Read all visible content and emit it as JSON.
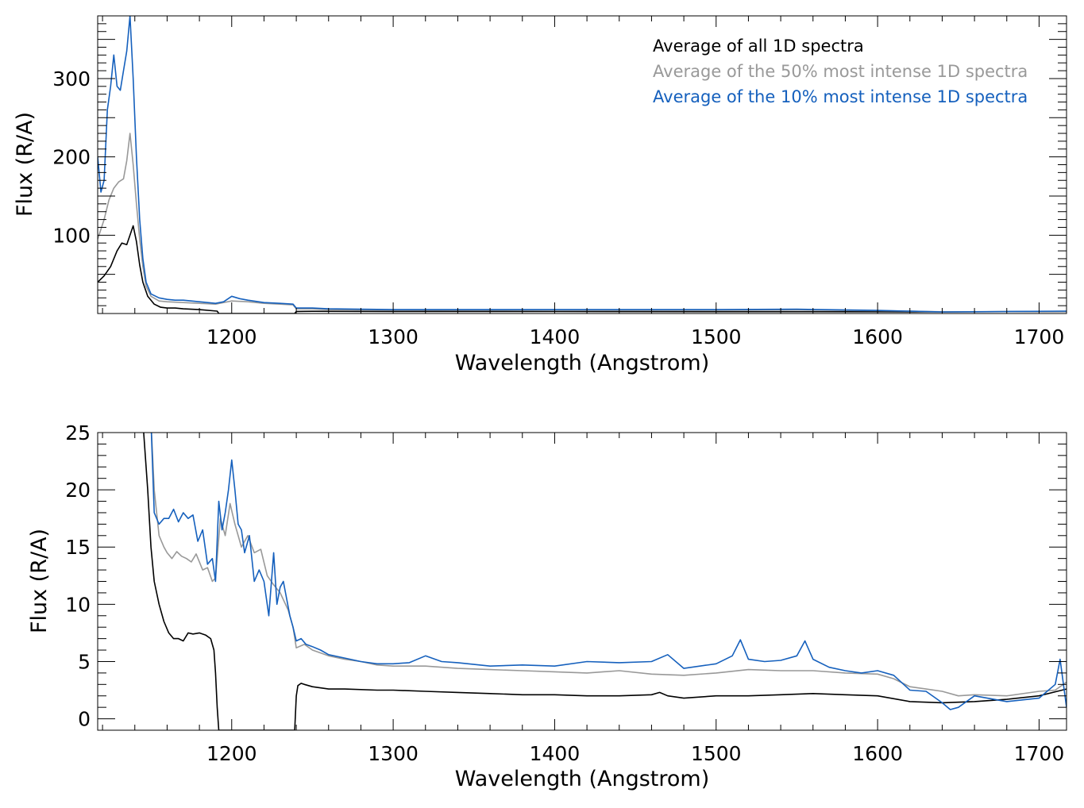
{
  "colors": {
    "all": "#000000",
    "top50": "#999999",
    "top10": "#1560bd",
    "axis": "#000000"
  },
  "chart_data": [
    {
      "type": "line",
      "xlabel": "Wavelength (Angstrom)",
      "ylabel": "Flux (R/A)",
      "xlim": [
        1117,
        1717
      ],
      "ylim": [
        0,
        380
      ],
      "xticks": [
        1200,
        1300,
        1400,
        1500,
        1600,
        1700
      ],
      "xtick_labels": [
        "1200",
        "1300",
        "1400",
        "1500",
        "1600",
        "1700"
      ],
      "yticks": [
        100,
        200,
        300
      ],
      "ytick_labels": [
        "100",
        "200",
        "300"
      ],
      "legend_position": "top-right",
      "legend": [
        "Average of all 1D spectra",
        "Average of the 50% most intense 1D spectra",
        "Average of the 10% most intense 1D spectra"
      ],
      "series": [
        {
          "name": "Average of all 1D spectra",
          "x": [
            1117,
            1121,
            1125,
            1129,
            1132,
            1135,
            1137,
            1139,
            1141,
            1143,
            1145,
            1148,
            1152,
            1156,
            1160,
            1165,
            1170,
            1180,
            1191,
            1192,
            1239,
            1240,
            1250,
            1300,
            1400,
            1500,
            1600,
            1640,
            1680,
            1717
          ],
          "y": [
            40,
            48,
            60,
            80,
            90,
            88,
            100,
            112,
            92,
            62,
            40,
            22,
            12,
            8,
            7,
            7,
            6,
            5,
            3,
            0,
            0,
            2.6,
            2.8,
            2.6,
            2.5,
            2.3,
            2.2,
            2.0,
            2.3,
            2.6
          ]
        },
        {
          "name": "Average of the 50% most intense 1D spectra",
          "x": [
            1117,
            1121,
            1124,
            1127,
            1130,
            1133,
            1135,
            1137,
            1139,
            1141,
            1143,
            1145,
            1147,
            1150,
            1155,
            1160,
            1170,
            1180,
            1190,
            1200,
            1210,
            1220,
            1230,
            1238,
            1240,
            1250,
            1260,
            1300,
            1350,
            1400,
            1450,
            1500,
            1550,
            1600,
            1640,
            1680,
            1717
          ],
          "y": [
            95,
            120,
            145,
            160,
            168,
            172,
            195,
            230,
            190,
            140,
            95,
            60,
            35,
            22,
            16,
            15,
            14,
            13,
            12,
            16,
            15,
            13,
            12,
            11,
            6,
            6,
            5,
            4.5,
            4.3,
            4.2,
            4.2,
            4.3,
            4.4,
            3.6,
            2.2,
            2.3,
            2.8
          ]
        },
        {
          "name": "Average of the 10% most intense 1D spectra",
          "x": [
            1117,
            1119,
            1121,
            1123,
            1125,
            1127,
            1129,
            1131,
            1133,
            1135,
            1137,
            1139,
            1141,
            1143,
            1145,
            1147,
            1150,
            1155,
            1160,
            1165,
            1170,
            1180,
            1190,
            1195,
            1200,
            1205,
            1210,
            1220,
            1230,
            1238,
            1240,
            1250,
            1260,
            1300,
            1350,
            1400,
            1450,
            1500,
            1550,
            1600,
            1640,
            1680,
            1717
          ],
          "y": [
            200,
            155,
            170,
            260,
            290,
            330,
            290,
            285,
            310,
            335,
            380,
            300,
            200,
            120,
            70,
            40,
            25,
            20,
            18,
            17,
            17,
            15,
            13,
            15,
            22,
            19,
            17,
            14,
            13,
            12,
            7,
            7,
            6,
            5,
            5,
            5,
            5,
            5,
            5.5,
            4,
            2,
            2.5,
            3
          ]
        }
      ]
    },
    {
      "type": "line",
      "xlabel": "Wavelength (Angstrom)",
      "ylabel": "Flux (R/A)",
      "xlim": [
        1117,
        1717
      ],
      "ylim": [
        -1,
        25
      ],
      "xticks": [
        1200,
        1300,
        1400,
        1500,
        1600,
        1700
      ],
      "xtick_labels": [
        "1200",
        "1300",
        "1400",
        "1500",
        "1600",
        "1700"
      ],
      "yticks": [
        0,
        5,
        10,
        15,
        20,
        25
      ],
      "ytick_labels": [
        "0",
        "5",
        "10",
        "15",
        "20",
        "25"
      ],
      "series": [
        {
          "name": "Average of all 1D spectra",
          "x": [
            1145,
            1148,
            1150,
            1152,
            1155,
            1158,
            1161,
            1164,
            1167,
            1170,
            1173,
            1176,
            1180,
            1184,
            1187,
            1189,
            1190,
            1191,
            1192,
            1239,
            1240,
            1241,
            1243,
            1245,
            1250,
            1260,
            1270,
            1290,
            1300,
            1320,
            1340,
            1360,
            1380,
            1400,
            1420,
            1440,
            1460,
            1465,
            1470,
            1480,
            1500,
            1520,
            1540,
            1560,
            1580,
            1600,
            1620,
            1640,
            1660,
            1680,
            1700,
            1717
          ],
          "y": [
            26,
            20,
            15,
            12,
            10,
            8.5,
            7.5,
            7,
            7,
            6.8,
            7.5,
            7.4,
            7.5,
            7.3,
            7,
            6,
            4,
            1,
            -1,
            -1,
            2,
            2.9,
            3.1,
            3.0,
            2.8,
            2.6,
            2.6,
            2.5,
            2.5,
            2.4,
            2.3,
            2.2,
            2.1,
            2.1,
            2.0,
            2.0,
            2.1,
            2.3,
            2.0,
            1.8,
            2.0,
            2.0,
            2.1,
            2.2,
            2.1,
            2.0,
            1.5,
            1.4,
            1.5,
            1.7,
            2.0,
            2.6
          ]
        },
        {
          "name": "Average of the 50% most intense 1D spectra",
          "x": [
            1150,
            1152,
            1155,
            1158,
            1160,
            1163,
            1166,
            1169,
            1172,
            1175,
            1178,
            1182,
            1185,
            1188,
            1190,
            1193,
            1196,
            1199,
            1202,
            1206,
            1210,
            1214,
            1218,
            1222,
            1226,
            1230,
            1235,
            1238,
            1240,
            1245,
            1250,
            1260,
            1270,
            1280,
            1290,
            1300,
            1320,
            1340,
            1360,
            1380,
            1400,
            1420,
            1440,
            1460,
            1480,
            1500,
            1520,
            1540,
            1560,
            1580,
            1600,
            1610,
            1620,
            1630,
            1640,
            1650,
            1660,
            1680,
            1700,
            1710,
            1717
          ],
          "y": [
            26,
            20,
            16,
            15,
            14.5,
            14,
            14.6,
            14.2,
            14,
            13.7,
            14.4,
            13,
            13.2,
            12,
            12.3,
            17.5,
            16,
            18.8,
            17,
            15,
            16,
            14.5,
            14.8,
            12.5,
            11.7,
            11,
            9.5,
            8,
            6.2,
            6.5,
            6.0,
            5.5,
            5.2,
            5.0,
            4.7,
            4.6,
            4.6,
            4.4,
            4.3,
            4.2,
            4.1,
            4.0,
            4.2,
            3.9,
            3.8,
            4.0,
            4.3,
            4.2,
            4.2,
            4.0,
            3.9,
            3.5,
            2.8,
            2.6,
            2.4,
            2.0,
            2.1,
            2.0,
            2.4,
            2.5,
            3.2
          ]
        },
        {
          "name": "Average of the 10% most intense 1D spectra",
          "x": [
            1150,
            1152,
            1155,
            1158,
            1161,
            1164,
            1167,
            1170,
            1173,
            1176,
            1179,
            1182,
            1185,
            1188,
            1190,
            1192,
            1194,
            1196,
            1198,
            1200,
            1202,
            1204,
            1206,
            1208,
            1211,
            1214,
            1217,
            1220,
            1223,
            1226,
            1228,
            1230,
            1232,
            1234,
            1236,
            1238,
            1240,
            1243,
            1246,
            1250,
            1255,
            1260,
            1270,
            1280,
            1290,
            1300,
            1310,
            1320,
            1330,
            1340,
            1360,
            1380,
            1400,
            1420,
            1440,
            1460,
            1470,
            1480,
            1500,
            1510,
            1515,
            1520,
            1530,
            1540,
            1550,
            1555,
            1560,
            1570,
            1580,
            1590,
            1600,
            1610,
            1620,
            1630,
            1640,
            1645,
            1650,
            1660,
            1680,
            1700,
            1710,
            1713,
            1717
          ],
          "y": [
            26,
            18,
            17,
            17.5,
            17.5,
            18.3,
            17.2,
            18,
            17.5,
            17.8,
            15.5,
            16.5,
            13.5,
            14,
            12,
            19,
            16.5,
            18,
            20,
            22.6,
            20,
            17,
            16.5,
            14.5,
            16,
            12,
            13,
            12,
            9,
            14.5,
            10,
            11.5,
            12,
            10.5,
            9,
            8,
            6.8,
            7.0,
            6.5,
            6.3,
            6.0,
            5.6,
            5.3,
            5.0,
            4.8,
            4.8,
            4.9,
            5.5,
            5.0,
            4.9,
            4.6,
            4.7,
            4.6,
            5.0,
            4.9,
            5.0,
            5.6,
            4.4,
            4.8,
            5.5,
            6.9,
            5.2,
            5.0,
            5.1,
            5.5,
            6.8,
            5.2,
            4.5,
            4.2,
            4.0,
            4.2,
            3.8,
            2.5,
            2.4,
            1.4,
            0.8,
            1.0,
            2.0,
            1.5,
            1.8,
            3.0,
            5.2,
            1.0
          ]
        }
      ]
    }
  ]
}
